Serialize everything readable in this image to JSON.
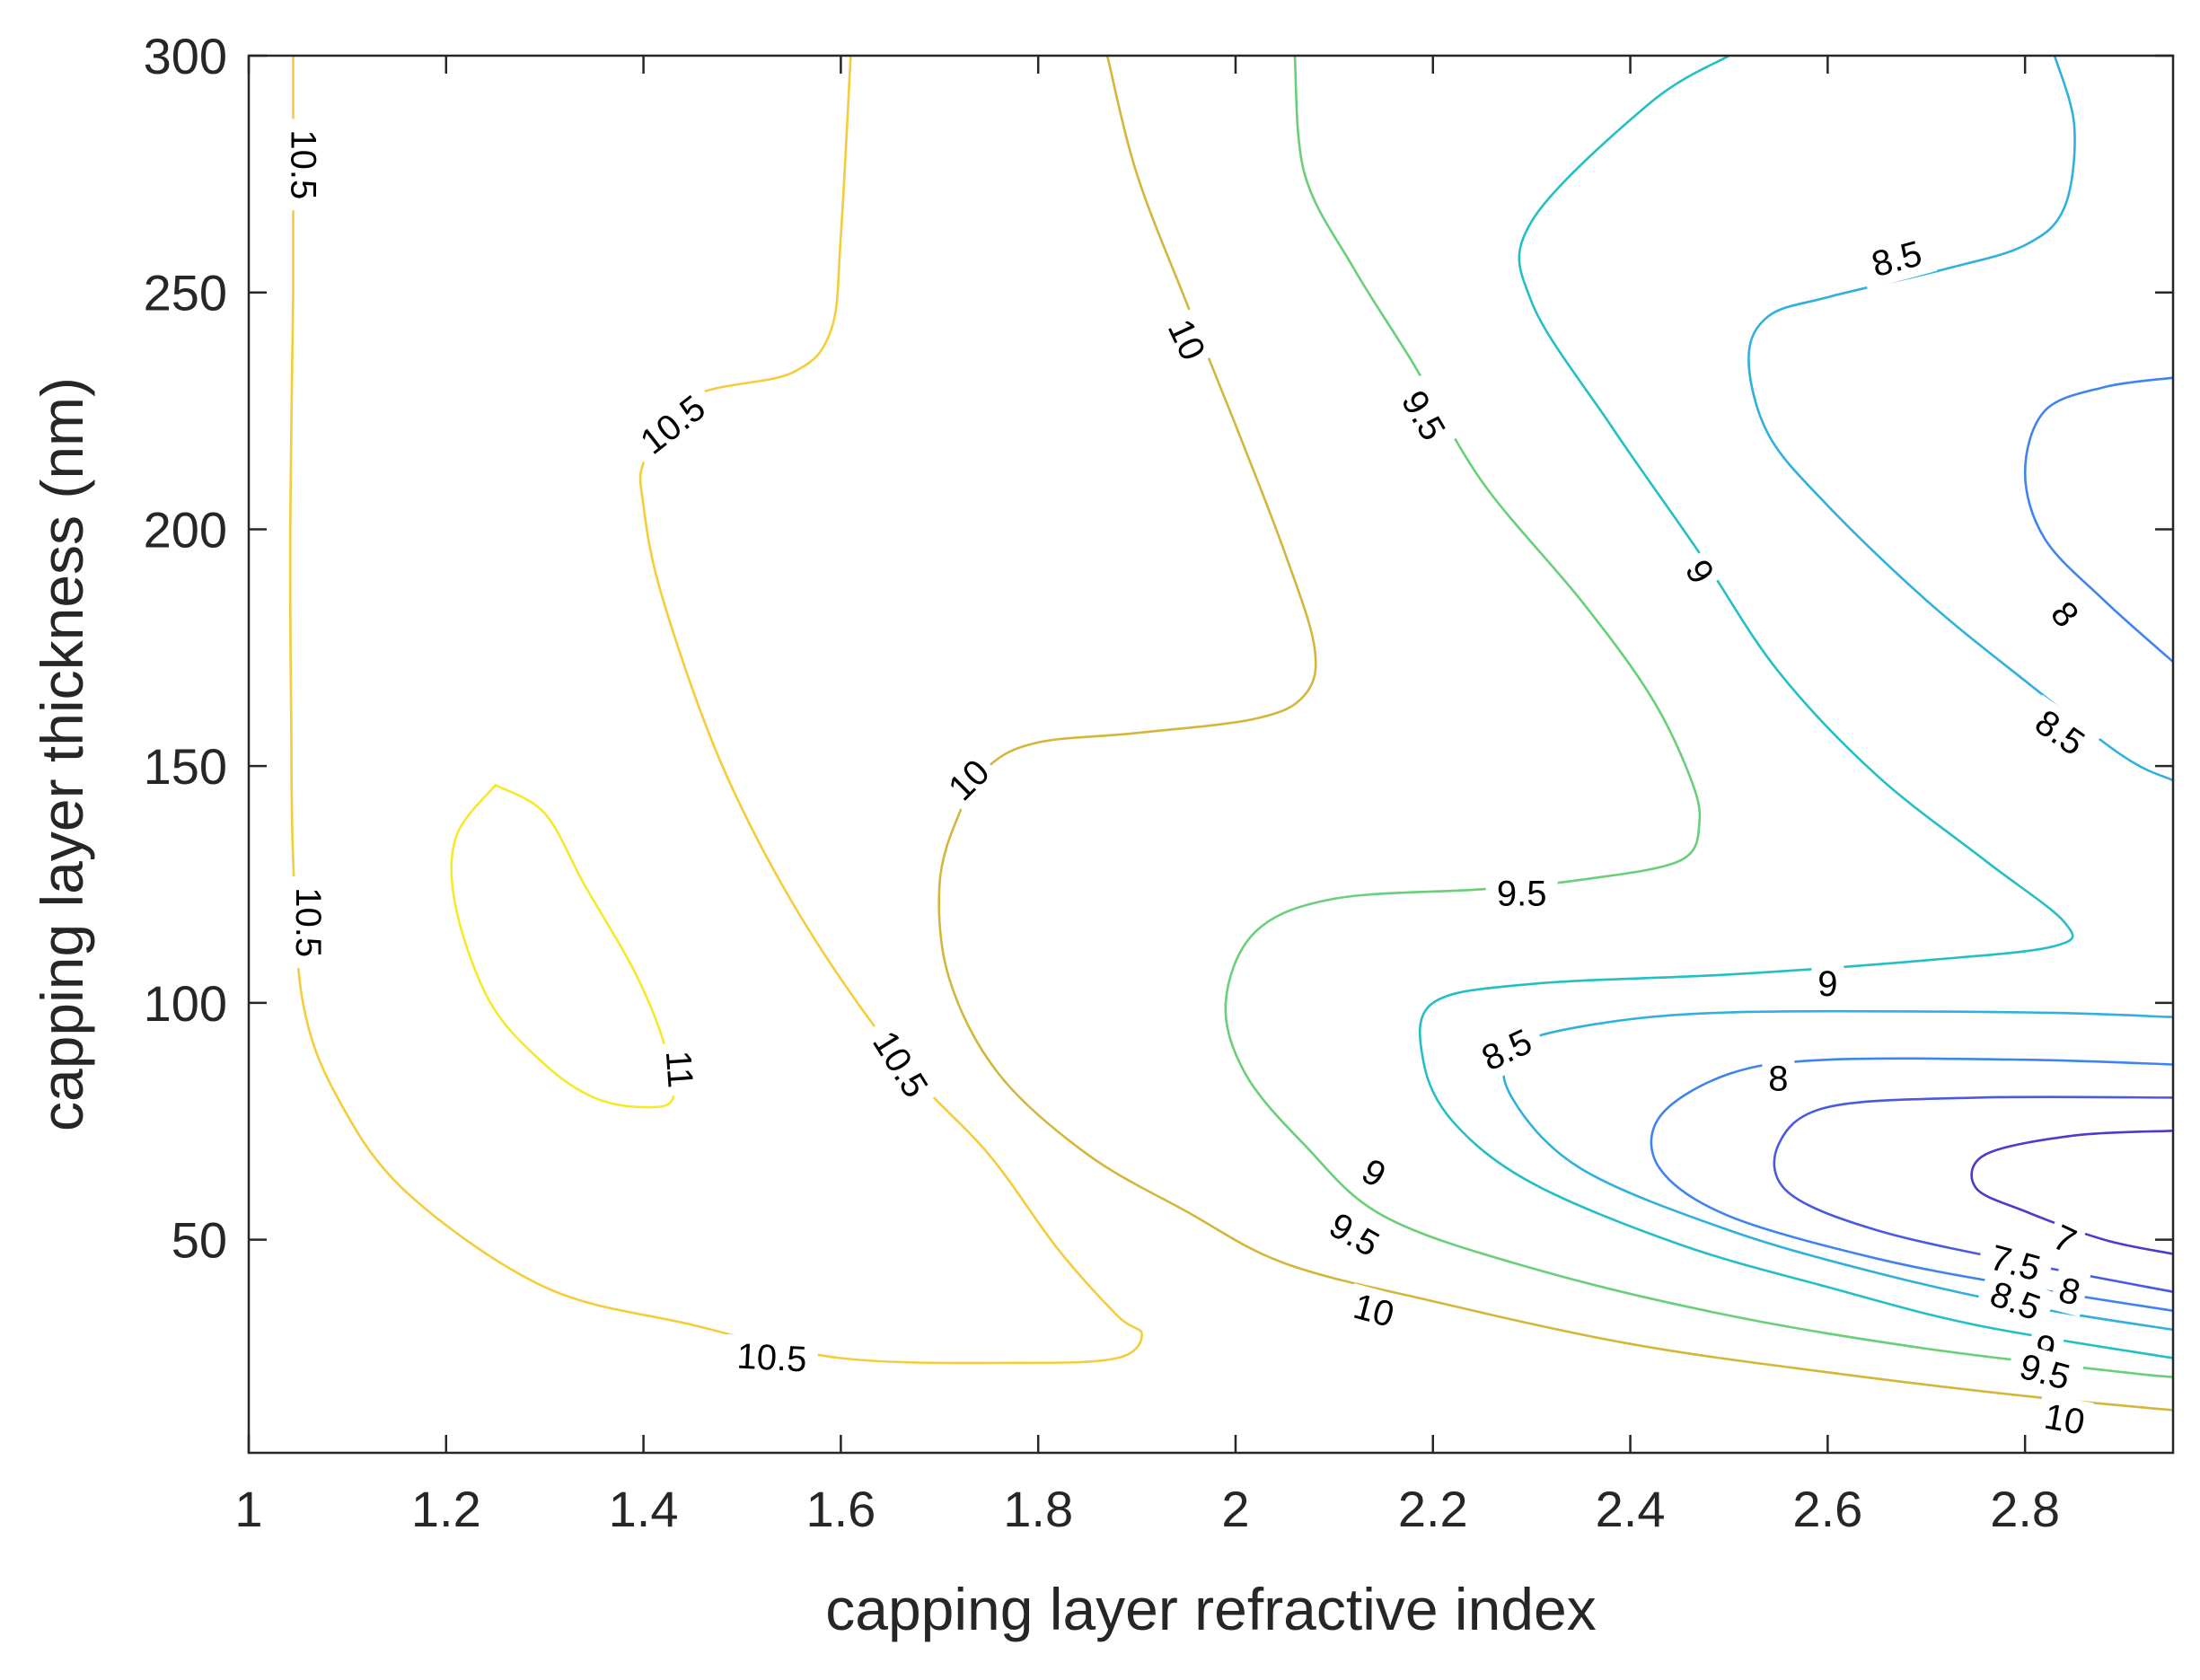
{
  "chart_data": {
    "type": "contour",
    "title": "",
    "xlabel": "capping layer refractive index",
    "ylabel": "capping layer thickness (nm)",
    "xlim": [
      1.0,
      2.95
    ],
    "ylim": [
      5,
      300
    ],
    "xticks": [
      1,
      1.2,
      1.4,
      1.6,
      1.8,
      2,
      2.2,
      2.4,
      2.6,
      2.8
    ],
    "xtick_labels": [
      "1",
      "1.2",
      "1.4",
      "1.6",
      "1.8",
      "2",
      "2.2",
      "2.4",
      "2.6",
      "2.8"
    ],
    "yticks": [
      50,
      100,
      150,
      200,
      250,
      300
    ],
    "ytick_labels": [
      "50",
      "100",
      "150",
      "200",
      "250",
      "300"
    ],
    "colors": {
      "7": "#4a3ccc",
      "7.5": "#4a5ae0",
      "8": "#3f84ee",
      "8.5": "#2fb0dd",
      "9": "#22c0c4",
      "9.5": "#69cf79",
      "10": "#d4b63a",
      "10.5": "#f5cc3a",
      "11": "#f5e92c"
    },
    "contours": [
      {
        "level": "10.5",
        "points": [
          [
            1.045,
            300
          ],
          [
            1.045,
            280
          ],
          [
            1.045,
            250
          ],
          [
            1.042,
            200
          ],
          [
            1.043,
            160
          ],
          [
            1.045,
            130
          ],
          [
            1.055,
            100
          ],
          [
            1.09,
            80
          ],
          [
            1.16,
            60
          ],
          [
            1.3,
            40
          ],
          [
            1.45,
            32
          ],
          [
            1.6,
            25
          ],
          [
            1.78,
            24
          ],
          [
            1.88,
            25
          ],
          [
            1.905,
            30
          ],
          [
            1.88,
            34
          ],
          [
            1.82,
            48
          ],
          [
            1.75,
            68
          ],
          [
            1.66,
            88
          ],
          [
            1.56,
            118
          ],
          [
            1.48,
            150
          ],
          [
            1.42,
            185
          ],
          [
            1.4,
            205
          ],
          [
            1.402,
            215
          ],
          [
            1.45,
            228
          ],
          [
            1.55,
            233
          ],
          [
            1.59,
            242
          ],
          [
            1.6,
            262
          ],
          [
            1.61,
            300
          ]
        ]
      },
      {
        "level": "11",
        "points": [
          [
            1.25,
            146
          ],
          [
            1.21,
            135
          ],
          [
            1.21,
            120
          ],
          [
            1.245,
            100
          ],
          [
            1.3,
            87
          ],
          [
            1.35,
            80
          ],
          [
            1.4,
            78
          ],
          [
            1.43,
            80
          ],
          [
            1.42,
            92
          ],
          [
            1.39,
            107
          ],
          [
            1.34,
            125
          ],
          [
            1.3,
            140
          ],
          [
            1.25,
            146
          ]
        ]
      },
      {
        "level": "10",
        "points": [
          [
            1.87,
            300
          ],
          [
            1.9,
            275
          ],
          [
            1.95,
            248
          ],
          [
            2.0,
            222
          ],
          [
            2.05,
            195
          ],
          [
            2.08,
            175
          ],
          [
            2.07,
            165
          ],
          [
            2.02,
            160
          ],
          [
            1.9,
            157
          ],
          [
            1.8,
            155
          ],
          [
            1.75,
            150
          ],
          [
            1.72,
            140
          ],
          [
            1.7,
            125
          ],
          [
            1.71,
            105
          ],
          [
            1.76,
            85
          ],
          [
            1.85,
            68
          ],
          [
            1.95,
            56
          ],
          [
            2.05,
            45
          ],
          [
            2.2,
            37
          ],
          [
            2.4,
            28
          ],
          [
            2.6,
            22
          ],
          [
            2.8,
            17
          ],
          [
            2.95,
            14
          ]
        ]
      },
      {
        "level": "9.5",
        "points": [
          [
            2.06,
            300
          ],
          [
            2.07,
            275
          ],
          [
            2.12,
            255
          ],
          [
            2.18,
            235
          ],
          [
            2.25,
            210
          ],
          [
            2.35,
            185
          ],
          [
            2.42,
            165
          ],
          [
            2.46,
            148
          ],
          [
            2.47,
            138
          ],
          [
            2.45,
            130
          ],
          [
            2.35,
            126
          ],
          [
            2.25,
            124
          ],
          [
            2.1,
            122
          ],
          [
            2.02,
            115
          ],
          [
            1.99,
            100
          ],
          [
            2.01,
            85
          ],
          [
            2.07,
            70
          ],
          [
            2.15,
            55
          ],
          [
            2.3,
            44
          ],
          [
            2.5,
            34
          ],
          [
            2.7,
            27
          ],
          [
            2.9,
            22
          ],
          [
            2.95,
            21
          ]
        ]
      },
      {
        "level": "9",
        "points": [
          [
            2.5,
            300
          ],
          [
            2.42,
            290
          ],
          [
            2.3,
            265
          ],
          [
            2.3,
            248
          ],
          [
            2.38,
            222
          ],
          [
            2.47,
            195
          ],
          [
            2.55,
            170
          ],
          [
            2.65,
            148
          ],
          [
            2.76,
            130
          ],
          [
            2.84,
            117
          ],
          [
            2.83,
            112
          ],
          [
            2.7,
            109
          ],
          [
            2.5,
            106
          ],
          [
            2.3,
            104
          ],
          [
            2.2,
            100
          ],
          [
            2.19,
            88
          ],
          [
            2.22,
            75
          ],
          [
            2.3,
            62
          ],
          [
            2.45,
            49
          ],
          [
            2.6,
            40
          ],
          [
            2.75,
            32
          ],
          [
            2.95,
            25
          ]
        ]
      },
      {
        "level": "8.5",
        "points": [
          [
            2.83,
            300
          ],
          [
            2.85,
            285
          ],
          [
            2.84,
            268
          ],
          [
            2.8,
            260
          ],
          [
            2.72,
            255
          ],
          [
            2.6,
            249
          ],
          [
            2.54,
            245
          ],
          [
            2.52,
            236
          ],
          [
            2.54,
            220
          ],
          [
            2.6,
            205
          ],
          [
            2.7,
            185
          ],
          [
            2.8,
            168
          ],
          [
            2.9,
            152
          ],
          [
            2.95,
            147
          ]
        ]
      },
      {
        "level": "8.5",
        "points": [
          [
            2.95,
            97
          ],
          [
            2.8,
            98
          ],
          [
            2.5,
            98
          ],
          [
            2.35,
            95
          ],
          [
            2.28,
            90
          ],
          [
            2.28,
            80
          ],
          [
            2.35,
            65
          ],
          [
            2.5,
            52
          ],
          [
            2.65,
            43
          ],
          [
            2.8,
            36
          ],
          [
            2.95,
            31
          ]
        ]
      },
      {
        "level": "8",
        "points": [
          [
            2.95,
            232
          ],
          [
            2.88,
            230
          ],
          [
            2.82,
            225
          ],
          [
            2.8,
            212
          ],
          [
            2.82,
            198
          ],
          [
            2.88,
            185
          ],
          [
            2.95,
            172
          ]
        ]
      },
      {
        "level": "8",
        "points": [
          [
            2.95,
            87
          ],
          [
            2.8,
            88
          ],
          [
            2.6,
            88
          ],
          [
            2.5,
            85
          ],
          [
            2.43,
            76
          ],
          [
            2.43,
            65
          ],
          [
            2.5,
            55
          ],
          [
            2.65,
            46
          ],
          [
            2.8,
            40
          ],
          [
            2.95,
            35
          ]
        ]
      },
      {
        "level": "7.5",
        "points": [
          [
            2.95,
            80
          ],
          [
            2.75,
            80
          ],
          [
            2.6,
            78
          ],
          [
            2.55,
            70
          ],
          [
            2.56,
            60
          ],
          [
            2.65,
            52
          ],
          [
            2.8,
            45
          ],
          [
            2.95,
            39
          ]
        ]
      },
      {
        "level": "7",
        "points": [
          [
            2.95,
            73
          ],
          [
            2.85,
            72
          ],
          [
            2.76,
            68
          ],
          [
            2.75,
            61
          ],
          [
            2.8,
            56
          ],
          [
            2.88,
            50
          ],
          [
            2.95,
            47
          ]
        ]
      }
    ],
    "contour_labels": [
      {
        "text": "10.5",
        "level": "10.5",
        "x": 1.055,
        "y": 277,
        "angle": 90
      },
      {
        "text": "10.5",
        "level": "10.5",
        "x": 1.43,
        "y": 222,
        "angle": -38
      },
      {
        "text": "10.5",
        "level": "10.5",
        "x": 1.06,
        "y": 117,
        "angle": 90
      },
      {
        "text": "10.5",
        "level": "10.5",
        "x": 1.66,
        "y": 87,
        "angle": 58
      },
      {
        "text": "10.5",
        "level": "10.5",
        "x": 1.53,
        "y": 25,
        "angle": 3
      },
      {
        "text": "11",
        "level": "11",
        "x": 1.436,
        "y": 86,
        "angle": 86
      },
      {
        "text": "10",
        "level": "10",
        "x": 1.95,
        "y": 240,
        "angle": 65
      },
      {
        "text": "10",
        "level": "10",
        "x": 1.73,
        "y": 147,
        "angle": -45
      },
      {
        "text": "10",
        "level": "10",
        "x": 2.14,
        "y": 35,
        "angle": 15
      },
      {
        "text": "9.5",
        "level": "9.5",
        "x": 2.19,
        "y": 224,
        "angle": 60
      },
      {
        "text": "9.5",
        "level": "9.5",
        "x": 2.29,
        "y": 123,
        "angle": 0
      },
      {
        "text": "9.5",
        "level": "9.5",
        "x": 2.12,
        "y": 51,
        "angle": 30
      },
      {
        "text": "9",
        "level": "9",
        "x": 2.47,
        "y": 191,
        "angle": 60
      },
      {
        "text": "9",
        "level": "9",
        "x": 2.6,
        "y": 104,
        "angle": 0
      },
      {
        "text": "9",
        "level": "9",
        "x": 2.14,
        "y": 64,
        "angle": 30
      },
      {
        "text": "8.5",
        "level": "8.5",
        "x": 2.67,
        "y": 257,
        "angle": -15
      },
      {
        "text": "8.5",
        "level": "8.5",
        "x": 2.835,
        "y": 157,
        "angle": 35
      },
      {
        "text": "8.5",
        "level": "8.5",
        "x": 2.275,
        "y": 90,
        "angle": -25
      },
      {
        "text": "8.5",
        "level": "8.5",
        "x": 2.79,
        "y": 37,
        "angle": 20
      },
      {
        "text": "8",
        "level": "8",
        "x": 2.84,
        "y": 182,
        "angle": 50
      },
      {
        "text": "8",
        "level": "8",
        "x": 2.55,
        "y": 84,
        "angle": 0
      },
      {
        "text": "8",
        "level": "8",
        "x": 2.845,
        "y": 39,
        "angle": 15
      },
      {
        "text": "7.5",
        "level": "7.5",
        "x": 2.79,
        "y": 45,
        "angle": 15
      },
      {
        "text": "7",
        "level": "7",
        "x": 2.84,
        "y": 50,
        "angle": 25
      },
      {
        "text": "9",
        "level": "9",
        "x": 2.82,
        "y": 27,
        "angle": 15
      },
      {
        "text": "9.5",
        "level": "9.5",
        "x": 2.82,
        "y": 22,
        "angle": 15
      },
      {
        "text": "10",
        "level": "10",
        "x": 2.84,
        "y": 12,
        "angle": 10
      }
    ]
  }
}
